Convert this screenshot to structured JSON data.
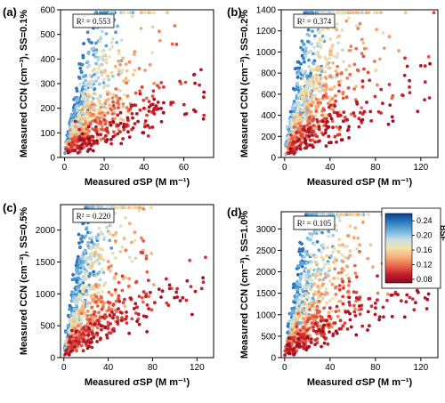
{
  "chart_data": [
    {
      "type": "scatter",
      "panel_label": "(a)",
      "xlabel": "Measured σSP (M m⁻¹)",
      "ylabel": "Measured CCN (cm⁻³), SS=0.1%",
      "xlim": [
        -2,
        75
      ],
      "ylim": [
        0,
        600
      ],
      "xticks": [
        "0",
        "20",
        "40",
        "60"
      ],
      "xtick_values": [
        0,
        20,
        40,
        60
      ],
      "yticks": [
        "0",
        "100",
        "200",
        "300",
        "400",
        "500",
        "600"
      ],
      "ytick_values": [
        0,
        100,
        200,
        300,
        400,
        500,
        600
      ],
      "annotation": "R² = 0.553",
      "r2": 0.553
    },
    {
      "type": "scatter",
      "panel_label": "(b)",
      "xlabel": "Measured σSP (M m⁻¹)",
      "ylabel": "Measured CCN (cm⁻³), SS=0.2%",
      "xlim": [
        -3,
        135
      ],
      "ylim": [
        0,
        1400
      ],
      "xticks": [
        "0",
        "40",
        "80",
        "120"
      ],
      "xtick_values": [
        0,
        40,
        80,
        120
      ],
      "yticks": [
        "0",
        "200",
        "400",
        "600",
        "800",
        "1000",
        "1200",
        "1400"
      ],
      "ytick_values": [
        0,
        200,
        400,
        600,
        800,
        1000,
        1200,
        1400
      ],
      "annotation": "R² = 0.374",
      "r2": 0.374
    },
    {
      "type": "scatter",
      "panel_label": "(c)",
      "xlabel": "Measured σSP (M m⁻¹)",
      "ylabel": "Measured CCN (cm⁻³), SS=0.5%",
      "xlim": [
        -3,
        135
      ],
      "ylim": [
        0,
        2400
      ],
      "xticks": [
        "0",
        "40",
        "80",
        "120"
      ],
      "xtick_values": [
        0,
        40,
        80,
        120
      ],
      "yticks": [
        "0",
        "500",
        "1000",
        "1500",
        "2000"
      ],
      "ytick_values": [
        0,
        500,
        1000,
        1500,
        2000
      ],
      "annotation": "R² = 0.220",
      "r2": 0.22
    },
    {
      "type": "scatter",
      "panel_label": "(d)",
      "xlabel": "Measured σSP (M m⁻¹)",
      "ylabel": "Measured CCN (cm⁻³), SS=1.0%",
      "xlim": [
        -3,
        135
      ],
      "ylim": [
        0,
        3400
      ],
      "xticks": [
        "0",
        "40",
        "80",
        "120"
      ],
      "xtick_values": [
        0,
        40,
        80,
        120
      ],
      "yticks": [
        "0",
        "500",
        "1000",
        "1500",
        "2000",
        "2500",
        "3000"
      ],
      "ytick_values": [
        0,
        500,
        1000,
        1500,
        2000,
        2500,
        3000
      ],
      "annotation": "R² = 0.105",
      "r2": 0.105
    }
  ],
  "colorbar": {
    "label": "BSF",
    "range": [
      0.07,
      0.26
    ],
    "ticks": [
      "0.24",
      "0.20",
      "0.16",
      "0.12",
      "0.08"
    ],
    "tick_values": [
      0.24,
      0.2,
      0.16,
      0.12,
      0.08
    ],
    "colors": [
      "#0a3f8f",
      "#2d7cc2",
      "#6fb2db",
      "#c8dfe8",
      "#f2e3a8",
      "#f6b27a",
      "#ea6a4a",
      "#c81f2e",
      "#8a0b1c"
    ]
  }
}
